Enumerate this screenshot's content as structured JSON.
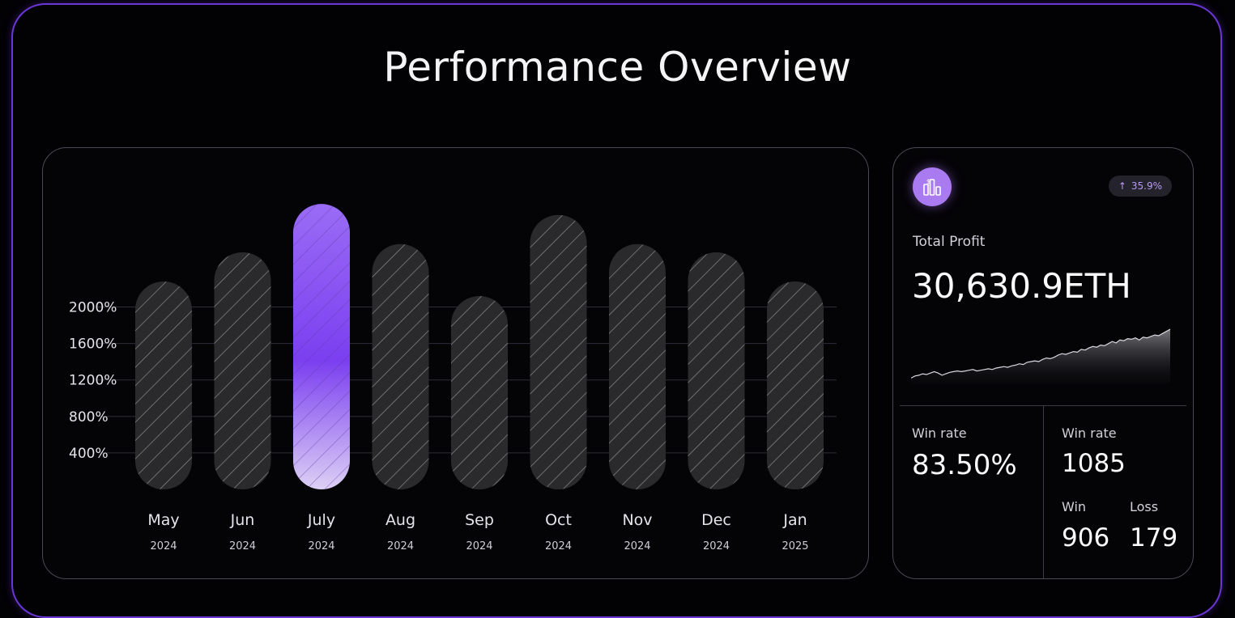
{
  "page": {
    "title": "Performance Overview"
  },
  "chart_data": {
    "type": "bar",
    "categories": [
      "May",
      "Jun",
      "July",
      "Aug",
      "Sep",
      "Oct",
      "Nov",
      "Dec",
      "Jan"
    ],
    "years": [
      "2024",
      "2024",
      "2024",
      "2024",
      "2024",
      "2024",
      "2024",
      "2024",
      "2025"
    ],
    "values": [
      2280,
      2600,
      3130,
      2690,
      2120,
      3010,
      2690,
      2600,
      2280
    ],
    "highlight_index": 2,
    "yticks": [
      400,
      800,
      1200,
      1600,
      2000
    ],
    "ytick_labels": [
      "400%",
      "800%",
      "1200%",
      "1600%",
      "2000%"
    ],
    "ylim": [
      0,
      3300
    ],
    "grid": true,
    "colors": {
      "bar": "#2a2a2c",
      "hatch": "#8a8a8e",
      "highlight_top": "#7b3ff0",
      "highlight_bottom": "#ddd0f5",
      "grid": "#2e2e36"
    }
  },
  "stats": {
    "badge": "35.9%",
    "badge_icon": "arrow-up-icon",
    "icon": "profit-chart-icon",
    "total_profit_label": "Total Profit",
    "total_profit_value": "30,630.9ETH",
    "win_rate_label": "Win rate",
    "win_rate_value": "83.50%",
    "trades_label": "Win rate",
    "trades_value": "1085",
    "win_label": "Win",
    "win_value": "906",
    "loss_label": "Loss",
    "loss_value": "179",
    "sparkline": [
      4,
      7,
      8,
      10,
      9,
      11,
      13,
      11,
      8,
      10,
      12,
      13,
      14,
      13,
      14,
      15,
      16,
      14,
      15,
      16,
      17,
      16,
      18,
      19,
      20,
      19,
      21,
      22,
      24,
      23,
      26,
      27,
      28,
      27,
      30,
      32,
      31,
      33,
      36,
      38,
      37,
      39,
      41,
      40,
      44,
      43,
      46,
      48,
      47,
      50,
      49,
      52,
      55,
      53,
      57,
      56,
      59,
      58,
      60,
      57,
      61,
      60,
      62,
      64,
      63,
      66,
      69,
      72
    ]
  }
}
